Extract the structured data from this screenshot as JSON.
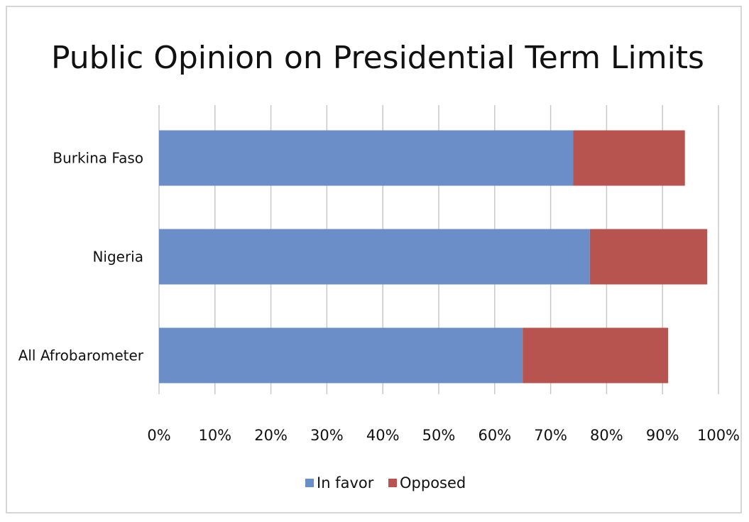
{
  "chart_data": {
    "type": "bar",
    "orientation": "horizontal",
    "stacked": true,
    "title": "Public Opinion on Presidential Term Limits",
    "xlabel": "",
    "ylabel": "",
    "categories": [
      "Burkina Faso",
      "Nigeria",
      "All Afrobarometer"
    ],
    "series": [
      {
        "name": "In favor",
        "color": "#6b8ec8",
        "values": [
          74,
          77,
          65
        ]
      },
      {
        "name": "Opposed",
        "color": "#b85450",
        "values": [
          20,
          21,
          26
        ]
      }
    ],
    "xlim": [
      0,
      100
    ],
    "x_ticks": [
      "0%",
      "10%",
      "20%",
      "30%",
      "40%",
      "50%",
      "60%",
      "70%",
      "80%",
      "90%",
      "100%"
    ],
    "grid": "vertical",
    "legend_position": "bottom"
  }
}
